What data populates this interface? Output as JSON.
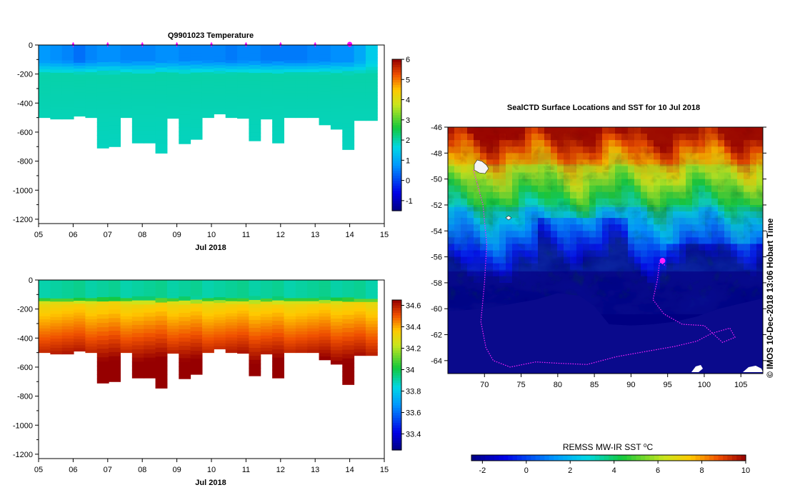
{
  "chart_data": [
    {
      "type": "heatmap",
      "title": "Q9901023  Temperature",
      "xlabel": "Jul 2018",
      "ylabel": "",
      "x_ticks": [
        "05",
        "06",
        "07",
        "08",
        "09",
        "10",
        "11",
        "12",
        "13",
        "14",
        "15"
      ],
      "x_range": [
        5,
        15
      ],
      "y_ticks": [
        "0",
        "-200",
        "-400",
        "-600",
        "-800",
        "-1000",
        "-1200"
      ],
      "y_range": [
        -1230,
        0
      ],
      "colorbar": {
        "ticks": [
          "6",
          "5",
          "4",
          "3",
          "2",
          "1",
          "0",
          "-1"
        ],
        "range": [
          -1.5,
          6
        ]
      },
      "profile_markers_day": [
        6,
        7,
        8,
        9,
        10,
        11,
        12,
        13,
        14
      ],
      "current_marker_day": 14,
      "profile_max_depth_m": [
        500,
        510,
        510,
        490,
        500,
        710,
        700,
        500,
        675,
        675,
        745,
        505,
        680,
        650,
        500,
        475,
        500,
        505,
        660,
        510,
        675,
        500,
        500,
        500,
        550,
        580,
        720,
        520,
        520
      ],
      "surface_temp_c": [
        0.8,
        0.7,
        0.6,
        0.4,
        0.6,
        0.7,
        0.7,
        0.6,
        0.6,
        0.6,
        0.7,
        0.7,
        0.6,
        0.6,
        0.6,
        0.6,
        0.5,
        0.6,
        0.6,
        0.5,
        0.5,
        0.5,
        0.5,
        0.6,
        0.6,
        0.7,
        0.7,
        1.0,
        1.5
      ],
      "deep_temp_c": 2.0
    },
    {
      "type": "heatmap",
      "title": "",
      "xlabel": "Jul 2018",
      "ylabel": "",
      "x_ticks": [
        "05",
        "06",
        "07",
        "08",
        "09",
        "10",
        "11",
        "12",
        "13",
        "14",
        "15"
      ],
      "x_range": [
        5,
        15
      ],
      "y_ticks": [
        "0",
        "-200",
        "-400",
        "-600",
        "-800",
        "-1000",
        "-1200"
      ],
      "y_range": [
        -1230,
        0
      ],
      "colorbar": {
        "ticks": [
          "34.6",
          "34.4",
          "34.2",
          "34",
          "33.8",
          "33.6",
          "33.4"
        ],
        "range": [
          33.25,
          34.65
        ]
      },
      "surface_salinity": 33.9,
      "deep_salinity": 34.65
    },
    {
      "type": "heatmap",
      "title": "SealCTD Surface Locations and SST for 10 Jul 2018",
      "xlabel": "",
      "ylabel": "",
      "x_ticks": [
        "70",
        "75",
        "80",
        "85",
        "90",
        "95",
        "100",
        "105"
      ],
      "x_range": [
        65,
        108
      ],
      "y_ticks": [
        "-46",
        "-48",
        "-50",
        "-52",
        "-54",
        "-56",
        "-58",
        "-60",
        "-62",
        "-64"
      ],
      "y_range": [
        -65,
        -46
      ],
      "colorbar": {
        "label": "REMSS MW-IR SST ⁰C",
        "ticks": [
          "-2",
          "0",
          "2",
          "4",
          "6",
          "8",
          "10"
        ],
        "range": [
          -2.5,
          10
        ]
      },
      "track": [
        [
          68.5,
          -49.3
        ],
        [
          69.8,
          -52
        ],
        [
          70.3,
          -55
        ],
        [
          70.0,
          -58
        ],
        [
          69.5,
          -61
        ],
        [
          70.2,
          -63.0
        ],
        [
          71.2,
          -64.0
        ],
        [
          73.5,
          -64.5
        ],
        [
          77.0,
          -64.1
        ],
        [
          80.0,
          -64.2
        ],
        [
          84.0,
          -64.3
        ],
        [
          88.0,
          -63.7
        ],
        [
          92.0,
          -63.3
        ],
        [
          96.0,
          -62.9
        ],
        [
          99.0,
          -62.5
        ],
        [
          101.0,
          -61.9
        ],
        [
          103.5,
          -61.5
        ],
        [
          104.2,
          -62.2
        ],
        [
          102.5,
          -62.6
        ],
        [
          100.0,
          -61.3
        ],
        [
          97.0,
          -61.2
        ],
        [
          94.5,
          -60.4
        ],
        [
          93.0,
          -59.3
        ],
        [
          93.6,
          -57.8
        ],
        [
          93.9,
          -56.4
        ],
        [
          94.8,
          -56.7
        ]
      ],
      "current_position": [
        94.3,
        -56.3
      ],
      "credit": "© IMOS 10-Dec-2018 13:06 Hobart Time"
    }
  ]
}
